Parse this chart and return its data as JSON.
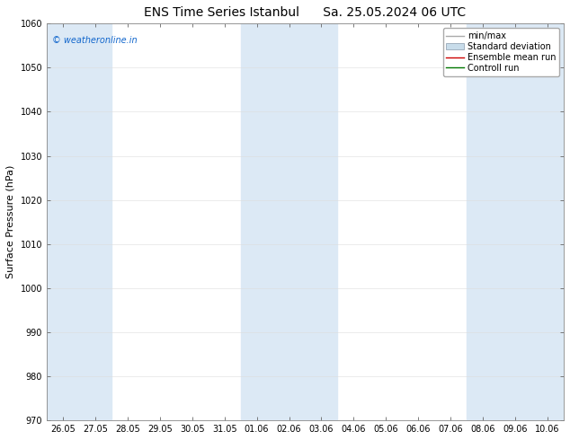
{
  "title_left": "ENS Time Series Istanbul",
  "title_right": "Sa. 25.05.2024 06 UTC",
  "ylabel": "Surface Pressure (hPa)",
  "ylim": [
    970,
    1060
  ],
  "yticks": [
    970,
    980,
    990,
    1000,
    1010,
    1020,
    1030,
    1040,
    1050,
    1060
  ],
  "x_tick_labels": [
    "26.05",
    "27.05",
    "28.05",
    "29.05",
    "30.05",
    "31.05",
    "01.06",
    "02.06",
    "03.06",
    "04.06",
    "05.06",
    "06.06",
    "07.06",
    "08.06",
    "09.06",
    "10.06"
  ],
  "shaded_bands": [
    0,
    1,
    6,
    7,
    8,
    13,
    14,
    15
  ],
  "shade_color": "#dce9f5",
  "bg_color": "#ffffff",
  "watermark": "© weatheronline.in",
  "watermark_color": "#1166cc",
  "legend_items": [
    {
      "label": "min/max",
      "color": "#aaaaaa",
      "lw": 1.0,
      "style": "-"
    },
    {
      "label": "Standard deviation",
      "color": "#c8dcea",
      "lw": 5,
      "style": "-"
    },
    {
      "label": "Ensemble mean run",
      "color": "#cc0000",
      "lw": 1.0,
      "style": "-"
    },
    {
      "label": "Controll run",
      "color": "#007700",
      "lw": 1.0,
      "style": "-"
    }
  ],
  "title_fontsize": 10,
  "axis_fontsize": 7,
  "ylabel_fontsize": 8,
  "watermark_fontsize": 7,
  "legend_fontsize": 7
}
